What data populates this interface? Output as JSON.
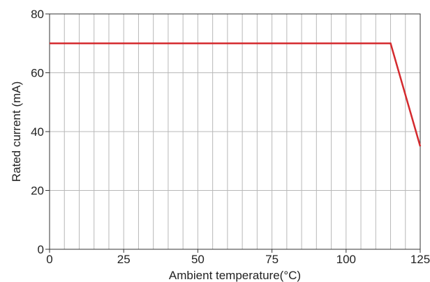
{
  "chart_data": {
    "type": "line",
    "title": "",
    "xlabel": "Ambient temperature(°C)",
    "ylabel": "Rated current (mA)",
    "xlim": [
      0,
      125
    ],
    "ylim": [
      0,
      80
    ],
    "x_ticks": [
      0,
      25,
      50,
      75,
      100,
      125
    ],
    "y_ticks": [
      0,
      20,
      40,
      60,
      80
    ],
    "x_grid_step": 5,
    "y_grid_step": 20,
    "grid": true,
    "series": [
      {
        "x": [
          0,
          115,
          125
        ],
        "y": [
          70,
          70,
          35
        ],
        "color": "#d42a2e"
      }
    ]
  },
  "colors": {
    "grid": "#b8b8b8",
    "axis": "#333333",
    "line": "#d42a2e"
  }
}
